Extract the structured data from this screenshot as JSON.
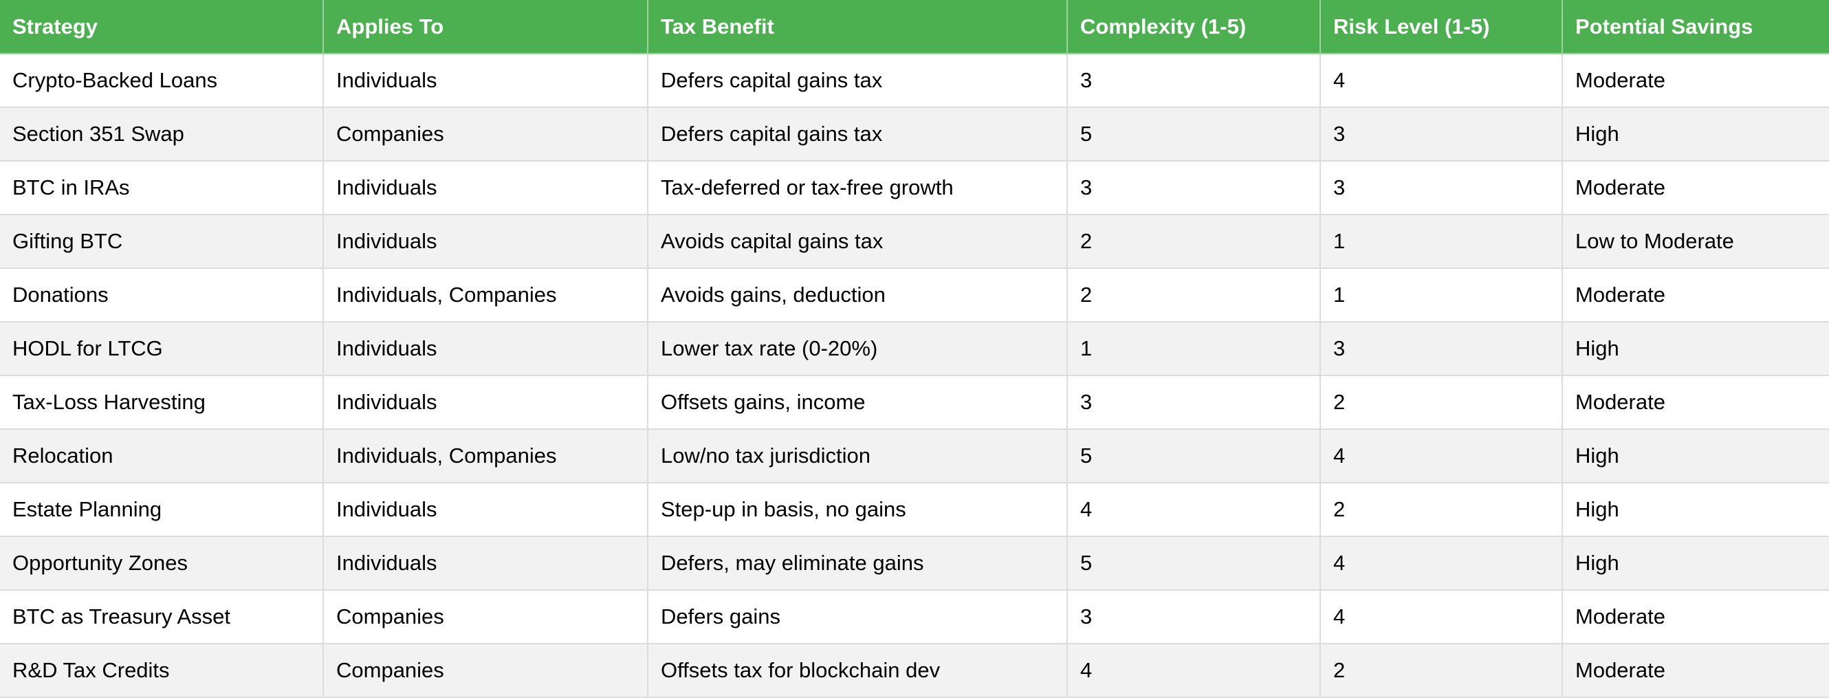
{
  "table": {
    "columns": [
      "Strategy",
      "Applies To",
      "Tax Benefit",
      "Complexity (1-5)",
      "Risk Level (1-5)",
      "Potential Savings"
    ],
    "rows": [
      [
        "Crypto-Backed Loans",
        "Individuals",
        "Defers capital gains tax",
        "3",
        "4",
        "Moderate"
      ],
      [
        "Section 351 Swap",
        "Companies",
        "Defers capital gains tax",
        "5",
        "3",
        "High"
      ],
      [
        "BTC in IRAs",
        "Individuals",
        "Tax-deferred or tax-free growth",
        "3",
        "3",
        "Moderate"
      ],
      [
        "Gifting BTC",
        "Individuals",
        "Avoids capital gains tax",
        "2",
        "1",
        "Low to Moderate"
      ],
      [
        "Donations",
        "Individuals, Companies",
        "Avoids gains, deduction",
        "2",
        "1",
        "Moderate"
      ],
      [
        "HODL for LTCG",
        "Individuals",
        "Lower tax rate (0-20%)",
        "1",
        "3",
        "High"
      ],
      [
        "Tax-Loss Harvesting",
        "Individuals",
        "Offsets gains, income",
        "3",
        "2",
        "Moderate"
      ],
      [
        "Relocation",
        "Individuals, Companies",
        "Low/no tax jurisdiction",
        "5",
        "4",
        "High"
      ],
      [
        "Estate Planning",
        "Individuals",
        "Step-up in basis, no gains",
        "4",
        "2",
        "High"
      ],
      [
        "Opportunity Zones",
        "Individuals",
        "Defers, may eliminate gains",
        "5",
        "4",
        "High"
      ],
      [
        "BTC as Treasury Asset",
        "Companies",
        "Defers gains",
        "3",
        "4",
        "Moderate"
      ],
      [
        "R&D Tax Credits",
        "Companies",
        "Offsets tax for blockchain dev",
        "4",
        "2",
        "Moderate"
      ]
    ],
    "header_bg": "#4caf50",
    "header_text": "#ffffff",
    "row_alt_bg": "#f2f2f2",
    "border_color": "#dcdcdc"
  }
}
